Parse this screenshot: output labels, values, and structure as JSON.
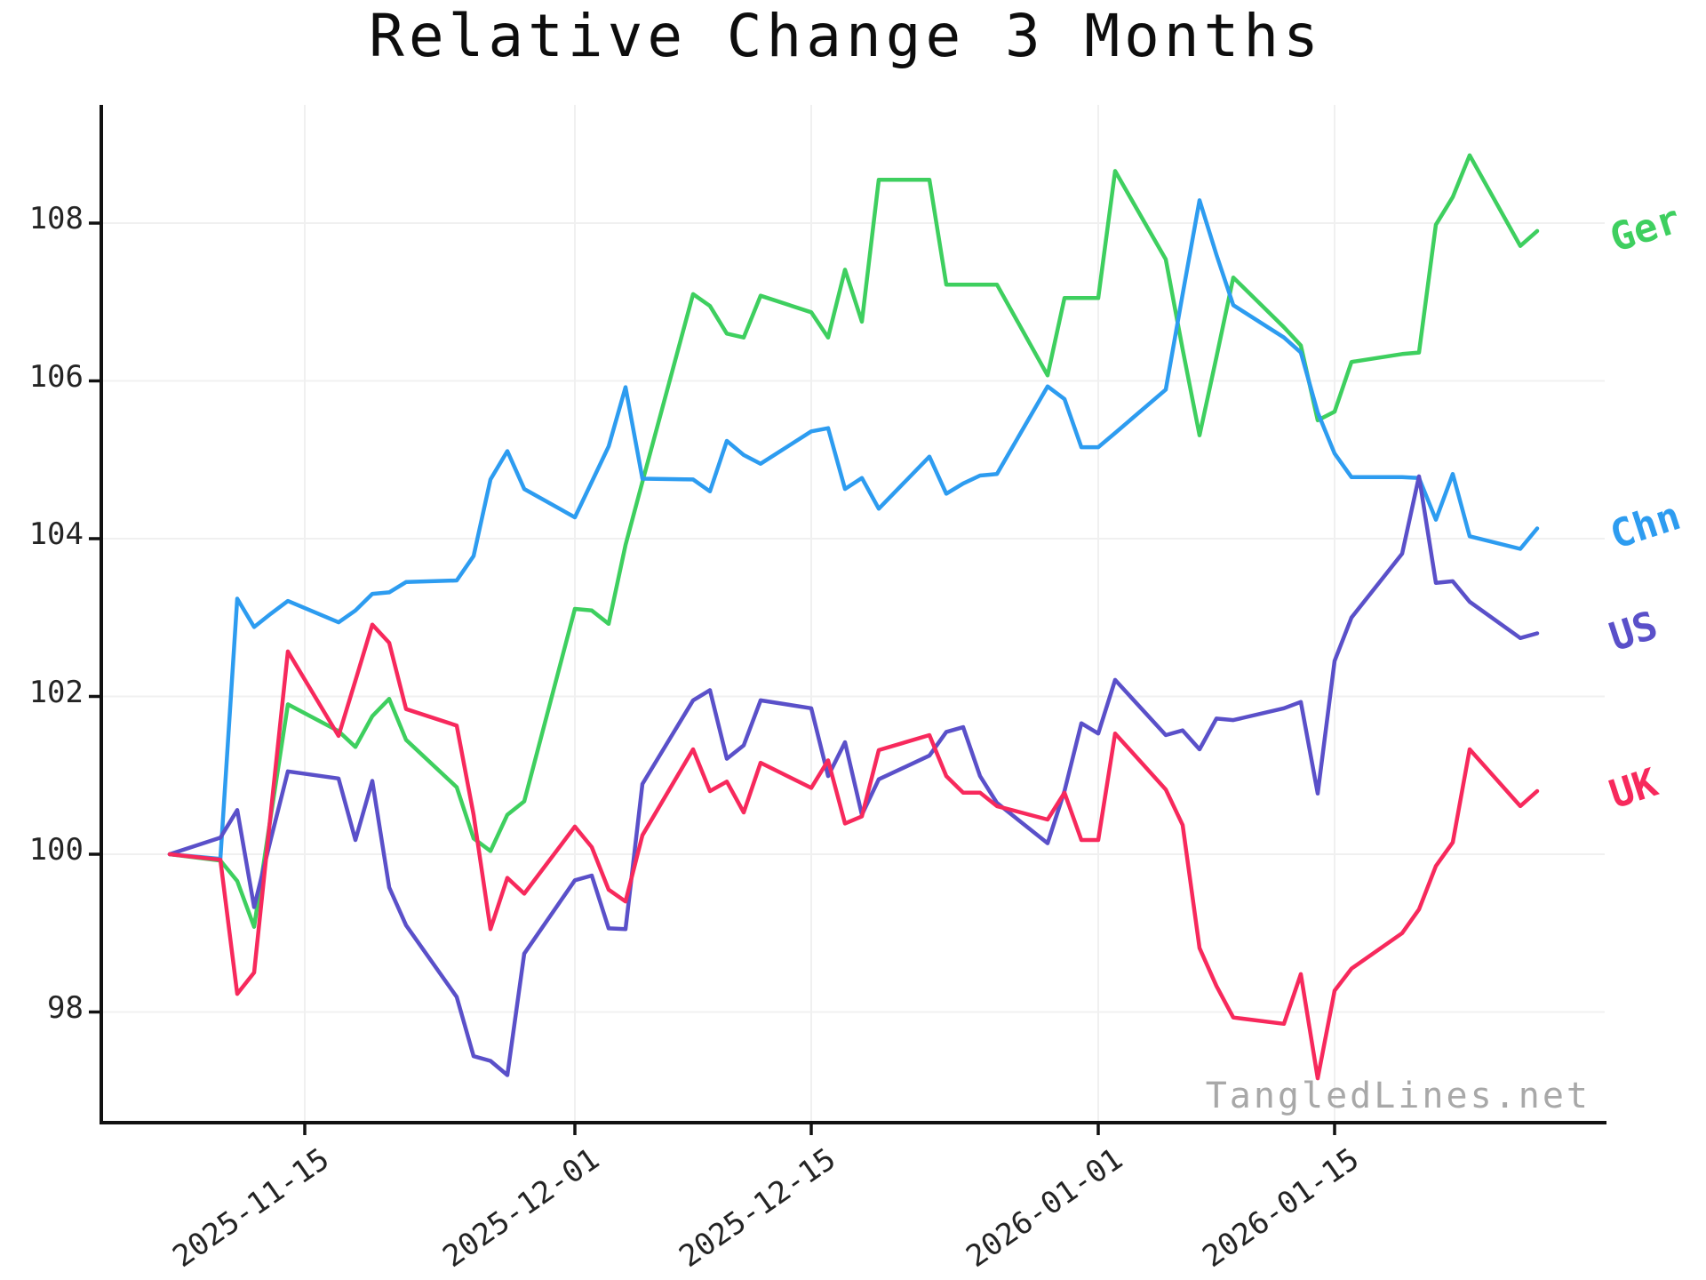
{
  "title": "Relative Change 3 Months",
  "watermark": "TangledLines.net",
  "chart_data": {
    "type": "line",
    "title": "Relative Change 3 Months",
    "xlabel": "",
    "ylabel": "",
    "grid": true,
    "legend_position": "right-of-line-ends",
    "ylim": [
      96.6,
      109.5
    ],
    "y_ticks": [
      98,
      100,
      102,
      104,
      106,
      108
    ],
    "x_tick_labels": [
      "2025-11-15",
      "2025-12-01",
      "2025-12-15",
      "2026-01-01",
      "2026-01-15"
    ],
    "x": [
      "2025-11-07",
      "2025-11-10",
      "2025-11-11",
      "2025-11-12",
      "2025-11-13",
      "2025-11-14",
      "2025-11-17",
      "2025-11-18",
      "2025-11-19",
      "2025-11-20",
      "2025-11-21",
      "2025-11-24",
      "2025-11-25",
      "2025-11-26",
      "2025-11-27",
      "2025-11-28",
      "2025-12-01",
      "2025-12-02",
      "2025-12-03",
      "2025-12-04",
      "2025-12-05",
      "2025-12-08",
      "2025-12-09",
      "2025-12-10",
      "2025-12-11",
      "2025-12-12",
      "2025-12-15",
      "2025-12-16",
      "2025-12-17",
      "2025-12-18",
      "2025-12-19",
      "2025-12-22",
      "2025-12-23",
      "2025-12-24",
      "2025-12-25",
      "2025-12-26",
      "2025-12-29",
      "2025-12-30",
      "2025-12-31",
      "2026-01-01",
      "2026-01-02",
      "2026-01-05",
      "2026-01-06",
      "2026-01-07",
      "2026-01-08",
      "2026-01-09",
      "2026-01-12",
      "2026-01-13",
      "2026-01-14",
      "2026-01-15",
      "2026-01-16",
      "2026-01-19",
      "2026-01-20",
      "2026-01-21",
      "2026-01-22",
      "2026-01-23",
      "2026-01-26",
      "2026-01-27"
    ],
    "series": [
      {
        "name": "Ger",
        "color": "#3ecf5f",
        "values": [
          100.0,
          99.92,
          99.66,
          99.08,
          100.5,
          101.9,
          101.56,
          101.36,
          101.75,
          101.97,
          101.45,
          100.85,
          100.2,
          100.04,
          100.5,
          100.67,
          103.11,
          103.09,
          102.92,
          103.92,
          104.72,
          107.1,
          106.95,
          106.6,
          106.55,
          107.08,
          106.87,
          106.55,
          107.41,
          106.75,
          108.55,
          108.55,
          107.22,
          107.22,
          107.22,
          107.22,
          106.07,
          107.05,
          107.05,
          107.05,
          108.66,
          107.54,
          106.4,
          105.31,
          106.3,
          107.31,
          106.68,
          106.45,
          105.5,
          105.61,
          106.24,
          106.34,
          106.36,
          107.98,
          108.33,
          108.86,
          107.71,
          107.9
        ]
      },
      {
        "name": "Chn",
        "color": "#2d9cf0",
        "values": [
          100.0,
          99.94,
          103.24,
          102.88,
          103.05,
          103.21,
          102.94,
          103.09,
          103.3,
          103.32,
          103.45,
          103.47,
          103.78,
          104.75,
          105.11,
          104.63,
          104.27,
          104.72,
          105.17,
          105.92,
          104.76,
          104.75,
          104.6,
          105.24,
          105.06,
          104.95,
          105.36,
          105.4,
          104.63,
          104.77,
          104.38,
          105.04,
          104.57,
          104.7,
          104.8,
          104.82,
          105.93,
          105.77,
          105.16,
          105.16,
          105.34,
          105.89,
          107.1,
          108.29,
          107.6,
          106.96,
          106.55,
          106.36,
          105.6,
          105.08,
          104.78,
          104.78,
          104.77,
          104.24,
          104.82,
          104.03,
          103.87,
          104.13
        ]
      },
      {
        "name": "US",
        "color": "#5a50c9",
        "values": [
          100.0,
          100.21,
          100.56,
          99.33,
          100.2,
          101.05,
          100.96,
          100.18,
          100.93,
          99.58,
          99.1,
          98.19,
          97.44,
          97.38,
          97.2,
          98.74,
          99.67,
          99.73,
          99.06,
          99.05,
          100.89,
          101.95,
          102.08,
          101.21,
          101.38,
          101.95,
          101.85,
          100.99,
          101.42,
          100.5,
          100.95,
          101.25,
          101.55,
          101.61,
          100.99,
          100.65,
          100.14,
          100.8,
          101.66,
          101.53,
          102.21,
          101.51,
          101.57,
          101.33,
          101.72,
          101.7,
          101.85,
          101.93,
          100.77,
          102.45,
          103.0,
          103.81,
          104.79,
          103.44,
          103.46,
          103.2,
          102.74,
          102.8
        ]
      },
      {
        "name": "UK",
        "color": "#f7295c",
        "values": [
          100.0,
          99.93,
          98.23,
          98.5,
          100.55,
          102.57,
          101.5,
          102.2,
          102.91,
          102.68,
          101.84,
          101.63,
          100.5,
          99.05,
          99.7,
          99.5,
          100.35,
          100.09,
          99.55,
          99.4,
          100.24,
          101.33,
          100.8,
          100.92,
          100.53,
          101.16,
          100.84,
          101.19,
          100.39,
          100.48,
          101.32,
          101.51,
          100.99,
          100.78,
          100.78,
          100.61,
          100.44,
          100.78,
          100.18,
          100.18,
          101.53,
          100.82,
          100.37,
          98.81,
          98.33,
          97.93,
          97.85,
          98.48,
          97.16,
          98.27,
          98.55,
          99.0,
          99.3,
          99.85,
          100.15,
          101.33,
          100.61,
          100.8
        ]
      }
    ]
  }
}
